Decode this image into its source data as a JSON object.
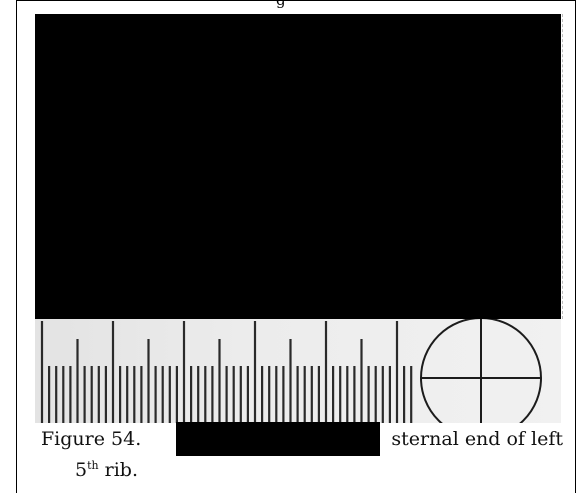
{
  "header_fragment": "g",
  "caption": {
    "figure_label": "Figure 54.",
    "text_after_redaction": "sternal end of left",
    "line2_number": "5",
    "line2_superscript": "th",
    "line2_text": " rib."
  }
}
